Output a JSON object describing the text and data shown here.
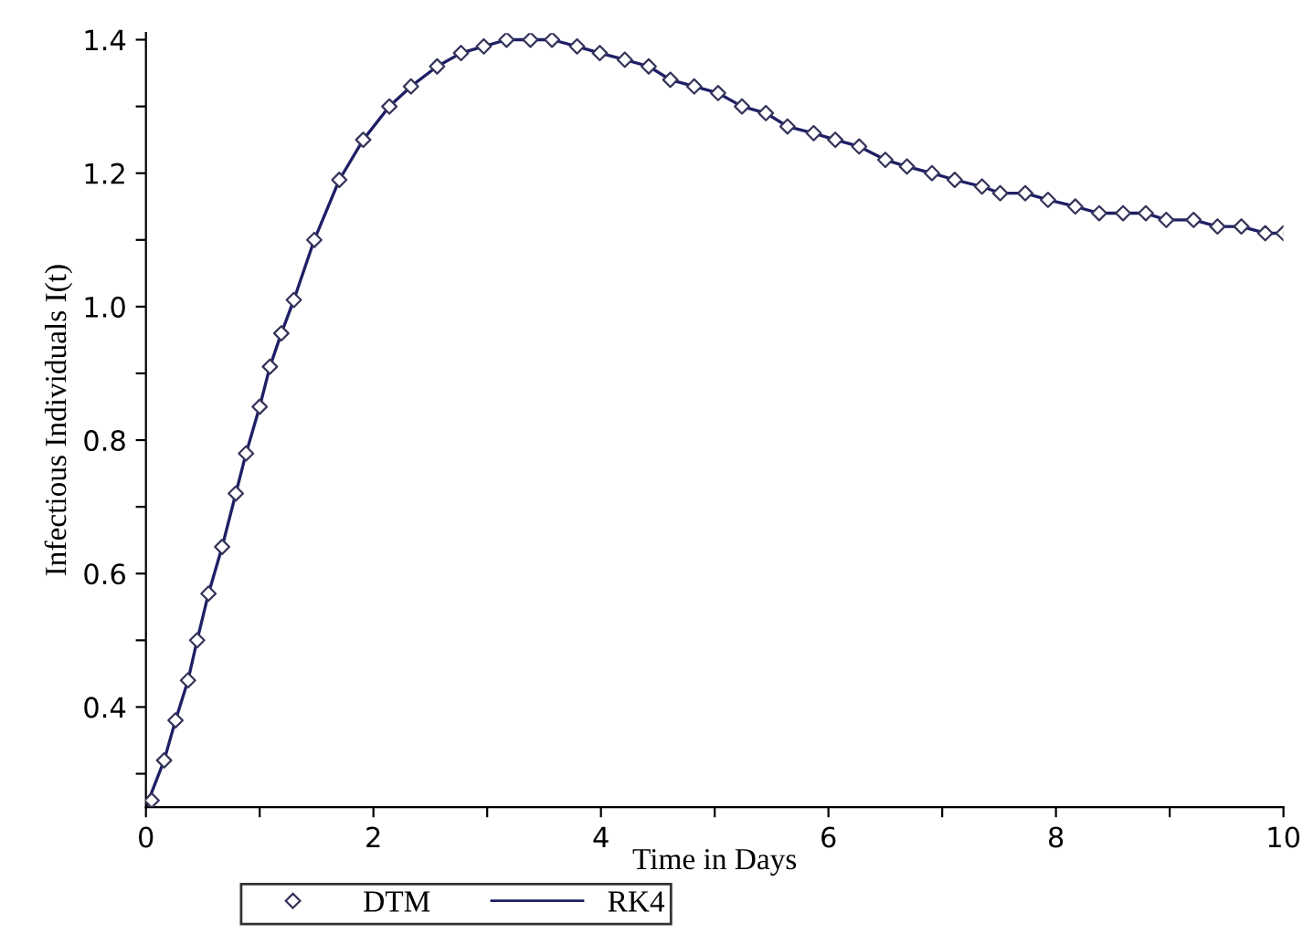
{
  "chart_data": {
    "type": "line",
    "xlabel": "Time in Days",
    "ylabel": "Infectious Individuals I(t)",
    "xlim": [
      0,
      10
    ],
    "ylim": [
      0.25,
      1.41
    ],
    "xticks": [
      0,
      {
        "value": 1,
        "label": null
      },
      2,
      {
        "value": 3,
        "label": null
      },
      4,
      {
        "value": 5,
        "label": null
      },
      6,
      {
        "value": 7,
        "label": null
      },
      8,
      {
        "value": 9,
        "label": null
      },
      10
    ],
    "yticks": [
      {
        "value": 0.3,
        "label": null
      },
      0.4,
      {
        "value": 0.5,
        "label": null
      },
      0.6,
      {
        "value": 0.7,
        "label": null
      },
      0.8,
      {
        "value": 0.9,
        "label": null
      },
      {
        "value": 1.0,
        "label": "1.0"
      },
      {
        "value": 1.1,
        "label": null
      },
      1.2,
      {
        "value": 1.3,
        "label": null
      },
      1.4
    ],
    "grid": false,
    "legend": "bottom",
    "series": [
      {
        "name": "DTM",
        "type": "scatter",
        "marker": "diamond",
        "color": "#34345a",
        "x": [
          0.05,
          0.16,
          0.26,
          0.37,
          0.45,
          0.55,
          0.67,
          0.79,
          0.88,
          1.0,
          1.09,
          1.19,
          1.3,
          1.48,
          1.7,
          1.91,
          2.14,
          2.33,
          2.56,
          2.77,
          2.97,
          3.17,
          3.38,
          3.57,
          3.79,
          3.99,
          4.21,
          4.42,
          4.61,
          4.82,
          5.03,
          5.24,
          5.45,
          5.64,
          5.87,
          6.06,
          6.27,
          6.5,
          6.69,
          6.91,
          7.11,
          7.35,
          7.51,
          7.73,
          7.93,
          8.17,
          8.38,
          8.59,
          8.79,
          8.97,
          9.21,
          9.42,
          9.63,
          9.84,
          10.0
        ],
        "values": [
          0.26,
          0.32,
          0.38,
          0.44,
          0.5,
          0.57,
          0.64,
          0.72,
          0.78,
          0.85,
          0.91,
          0.96,
          1.01,
          1.1,
          1.19,
          1.25,
          1.3,
          1.33,
          1.36,
          1.38,
          1.39,
          1.4,
          1.4,
          1.4,
          1.39,
          1.38,
          1.37,
          1.36,
          1.34,
          1.33,
          1.32,
          1.3,
          1.29,
          1.27,
          1.26,
          1.25,
          1.24,
          1.22,
          1.21,
          1.2,
          1.19,
          1.18,
          1.17,
          1.17,
          1.16,
          1.15,
          1.14,
          1.14,
          1.14,
          1.13,
          1.13,
          1.12,
          1.12,
          1.11,
          1.11
        ]
      },
      {
        "name": "RK4",
        "line_style": "solid",
        "color": "#1f1f66",
        "x": [
          0,
          0.16,
          0.26,
          0.37,
          0.45,
          0.55,
          0.67,
          0.79,
          0.88,
          1.0,
          1.09,
          1.19,
          1.3,
          1.48,
          1.7,
          1.91,
          2.14,
          2.33,
          2.56,
          2.77,
          2.97,
          3.17,
          3.38,
          3.57,
          3.79,
          3.99,
          4.21,
          4.42,
          4.61,
          4.82,
          5.03,
          5.24,
          5.45,
          5.64,
          5.87,
          6.06,
          6.27,
          6.5,
          6.69,
          6.91,
          7.11,
          7.35,
          7.51,
          7.73,
          7.93,
          8.17,
          8.38,
          8.59,
          8.79,
          8.97,
          9.21,
          9.42,
          9.63,
          9.84,
          10.0
        ],
        "values": [
          0.25,
          0.32,
          0.38,
          0.44,
          0.5,
          0.57,
          0.64,
          0.72,
          0.78,
          0.85,
          0.91,
          0.96,
          1.01,
          1.1,
          1.19,
          1.25,
          1.3,
          1.33,
          1.36,
          1.38,
          1.39,
          1.4,
          1.4,
          1.4,
          1.39,
          1.38,
          1.37,
          1.36,
          1.34,
          1.33,
          1.32,
          1.3,
          1.29,
          1.27,
          1.26,
          1.25,
          1.24,
          1.22,
          1.21,
          1.2,
          1.19,
          1.18,
          1.17,
          1.17,
          1.16,
          1.15,
          1.14,
          1.14,
          1.14,
          1.13,
          1.13,
          1.12,
          1.12,
          1.11,
          1.11
        ]
      }
    ]
  }
}
